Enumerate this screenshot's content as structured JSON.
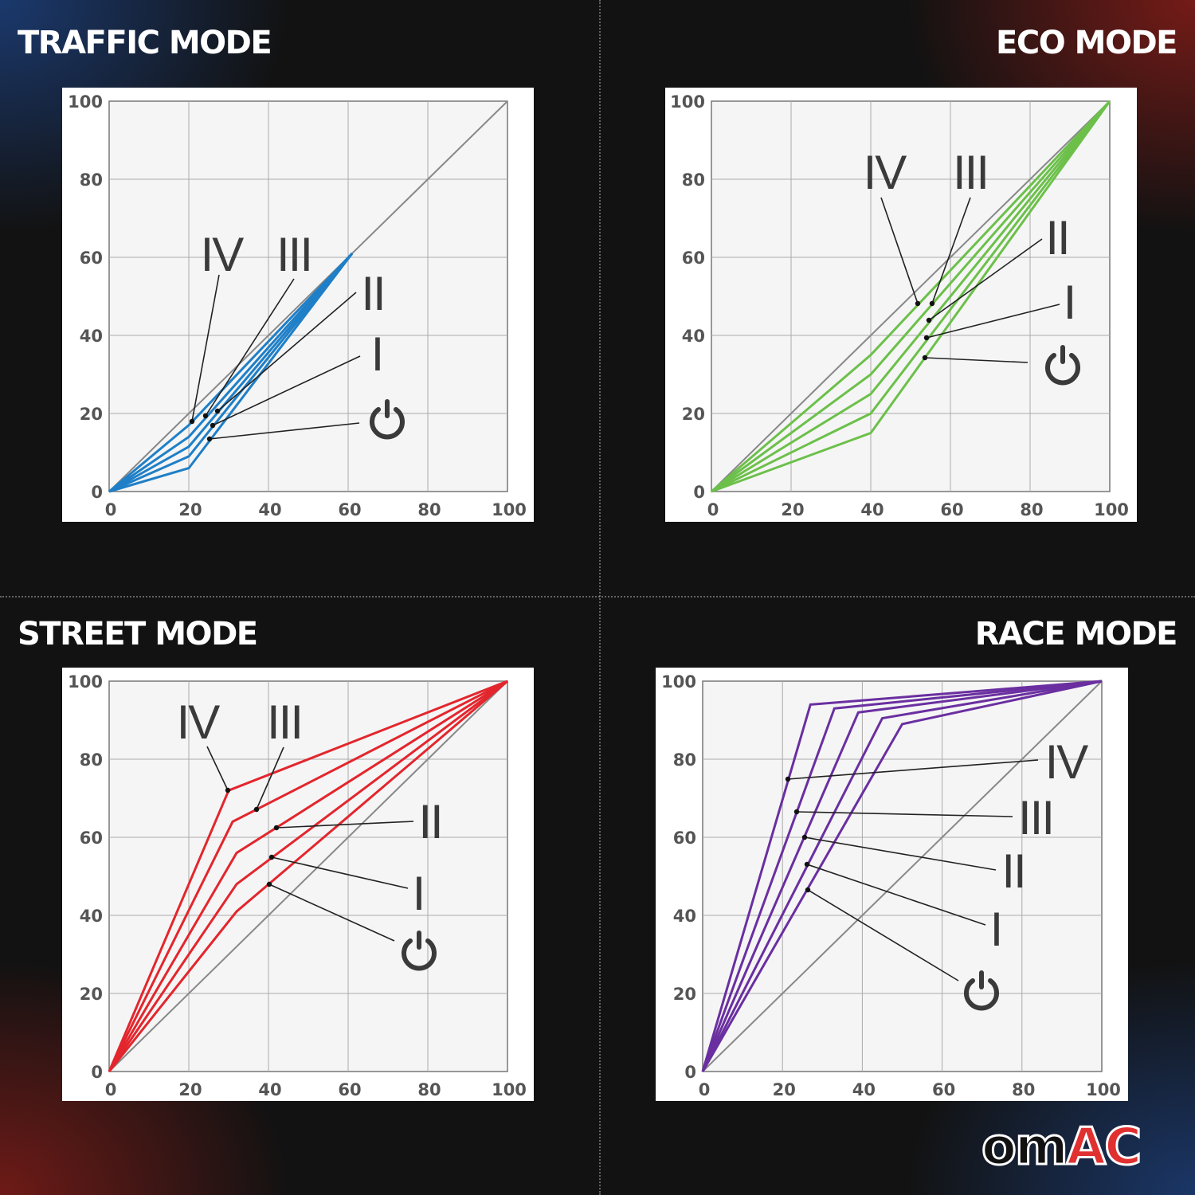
{
  "logo": {
    "text_dark": "om",
    "text_red": "AC"
  },
  "chart_data": [
    {
      "type": "line",
      "title": "TRAFFIC MODE",
      "color": "#1f7fc7",
      "xlim": [
        0,
        100
      ],
      "ylim": [
        0,
        100
      ],
      "xticks": [
        "0",
        "20",
        "40",
        "60",
        "80",
        "100"
      ],
      "yticks": [
        "0",
        "20",
        "40",
        "60",
        "80",
        "100"
      ],
      "grid": true,
      "reference_line": {
        "x": [
          0,
          100
        ],
        "y": [
          0,
          100
        ],
        "color": "#888888"
      },
      "series": [
        {
          "label_icon": "power-icon",
          "x": [
            0,
            20,
            61
          ],
          "y": [
            0,
            6,
            61
          ]
        },
        {
          "name": "I",
          "x": [
            0,
            20,
            61
          ],
          "y": [
            0,
            9,
            61
          ]
        },
        {
          "name": "II",
          "x": [
            0,
            20,
            61
          ],
          "y": [
            0,
            11.5,
            61
          ]
        },
        {
          "name": "III",
          "x": [
            0,
            20,
            61
          ],
          "y": [
            0,
            14,
            61
          ]
        },
        {
          "name": "IV",
          "x": [
            0,
            20,
            61
          ],
          "y": [
            0,
            17,
            61
          ]
        }
      ]
    },
    {
      "type": "line",
      "title": "ECO MODE",
      "color": "#6cc04a",
      "xlim": [
        0,
        100
      ],
      "ylim": [
        0,
        100
      ],
      "xticks": [
        "0",
        "20",
        "40",
        "60",
        "80",
        "100"
      ],
      "yticks": [
        "0",
        "20",
        "40",
        "60",
        "80",
        "100"
      ],
      "grid": true,
      "reference_line": {
        "x": [
          0,
          100
        ],
        "y": [
          0,
          100
        ],
        "color": "#888888"
      },
      "series": [
        {
          "label_icon": "power-icon",
          "x": [
            0,
            40,
            100
          ],
          "y": [
            0,
            15,
            100
          ]
        },
        {
          "name": "I",
          "x": [
            0,
            40,
            100
          ],
          "y": [
            0,
            20,
            100
          ]
        },
        {
          "name": "II",
          "x": [
            0,
            40,
            100
          ],
          "y": [
            0,
            25,
            100
          ]
        },
        {
          "name": "III",
          "x": [
            0,
            40,
            100
          ],
          "y": [
            0,
            30,
            100
          ]
        },
        {
          "name": "IV",
          "x": [
            0,
            40,
            100
          ],
          "y": [
            0,
            35,
            100
          ]
        }
      ]
    },
    {
      "type": "line",
      "title": "STREET MODE",
      "color": "#e3262d",
      "xlim": [
        0,
        100
      ],
      "ylim": [
        0,
        100
      ],
      "xticks": [
        "0",
        "20",
        "40",
        "60",
        "80",
        "100"
      ],
      "yticks": [
        "0",
        "20",
        "40",
        "60",
        "80",
        "100"
      ],
      "grid": true,
      "reference_line": {
        "x": [
          0,
          100
        ],
        "y": [
          0,
          100
        ],
        "color": "#888888"
      },
      "series": [
        {
          "label_icon": "power-icon",
          "x": [
            0,
            32,
            100
          ],
          "y": [
            0,
            41,
            100
          ]
        },
        {
          "name": "I",
          "x": [
            0,
            32,
            100
          ],
          "y": [
            0,
            48,
            100
          ]
        },
        {
          "name": "II",
          "x": [
            0,
            32,
            100
          ],
          "y": [
            0,
            56,
            100
          ]
        },
        {
          "name": "III",
          "x": [
            0,
            31,
            100
          ],
          "y": [
            0,
            64,
            100
          ]
        },
        {
          "name": "IV",
          "x": [
            0,
            30,
            100
          ],
          "y": [
            0,
            72,
            100
          ]
        }
      ]
    },
    {
      "type": "line",
      "title": "RACE MODE",
      "color": "#6a2fa0",
      "xlim": [
        0,
        100
      ],
      "ylim": [
        0,
        100
      ],
      "xticks": [
        "0",
        "20",
        "40",
        "60",
        "80",
        "100"
      ],
      "yticks": [
        "0",
        "20",
        "40",
        "60",
        "80",
        "100"
      ],
      "grid": true,
      "reference_line": {
        "x": [
          0,
          100
        ],
        "y": [
          0,
          100
        ],
        "color": "#888888"
      },
      "series": [
        {
          "label_icon": "power-icon",
          "x": [
            0,
            50,
            100
          ],
          "y": [
            0,
            89,
            100
          ]
        },
        {
          "name": "I",
          "x": [
            0,
            45,
            100
          ],
          "y": [
            0,
            90.5,
            100
          ]
        },
        {
          "name": "II",
          "x": [
            0,
            39,
            100
          ],
          "y": [
            0,
            92,
            100
          ]
        },
        {
          "name": "III",
          "x": [
            0,
            33,
            100
          ],
          "y": [
            0,
            93,
            100
          ]
        },
        {
          "name": "IV",
          "x": [
            0,
            27,
            100
          ],
          "y": [
            0,
            94,
            100
          ]
        }
      ]
    }
  ]
}
